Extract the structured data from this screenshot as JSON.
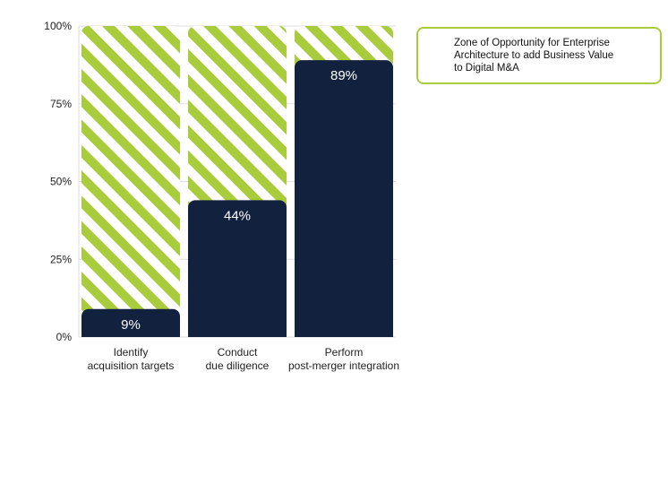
{
  "colors": {
    "bar": "#12213d",
    "hatch_stripe": "#a9cc3c",
    "grid": "#dddddd",
    "callout_border": "#a9cc3c"
  },
  "chart_data": {
    "type": "bar",
    "title": "",
    "xlabel": "",
    "ylabel": "",
    "ylim": [
      0,
      100
    ],
    "yticks": [
      "0%",
      "25%",
      "50%",
      "75%",
      "100%"
    ],
    "categories": [
      [
        "Identify",
        "acquisition targets"
      ],
      [
        "Conduct",
        "due diligence"
      ],
      [
        "Perform",
        "post-merger integration"
      ]
    ],
    "values": [
      9,
      44,
      89
    ],
    "data_labels": [
      "9%",
      "44%",
      "89%"
    ],
    "background_pattern": "hatched stripes filling each column to 100%",
    "grid": true
  },
  "callout": {
    "text": "Zone of Opportunity for Enterprise Architecture to add Business Value to Digital M&A"
  }
}
